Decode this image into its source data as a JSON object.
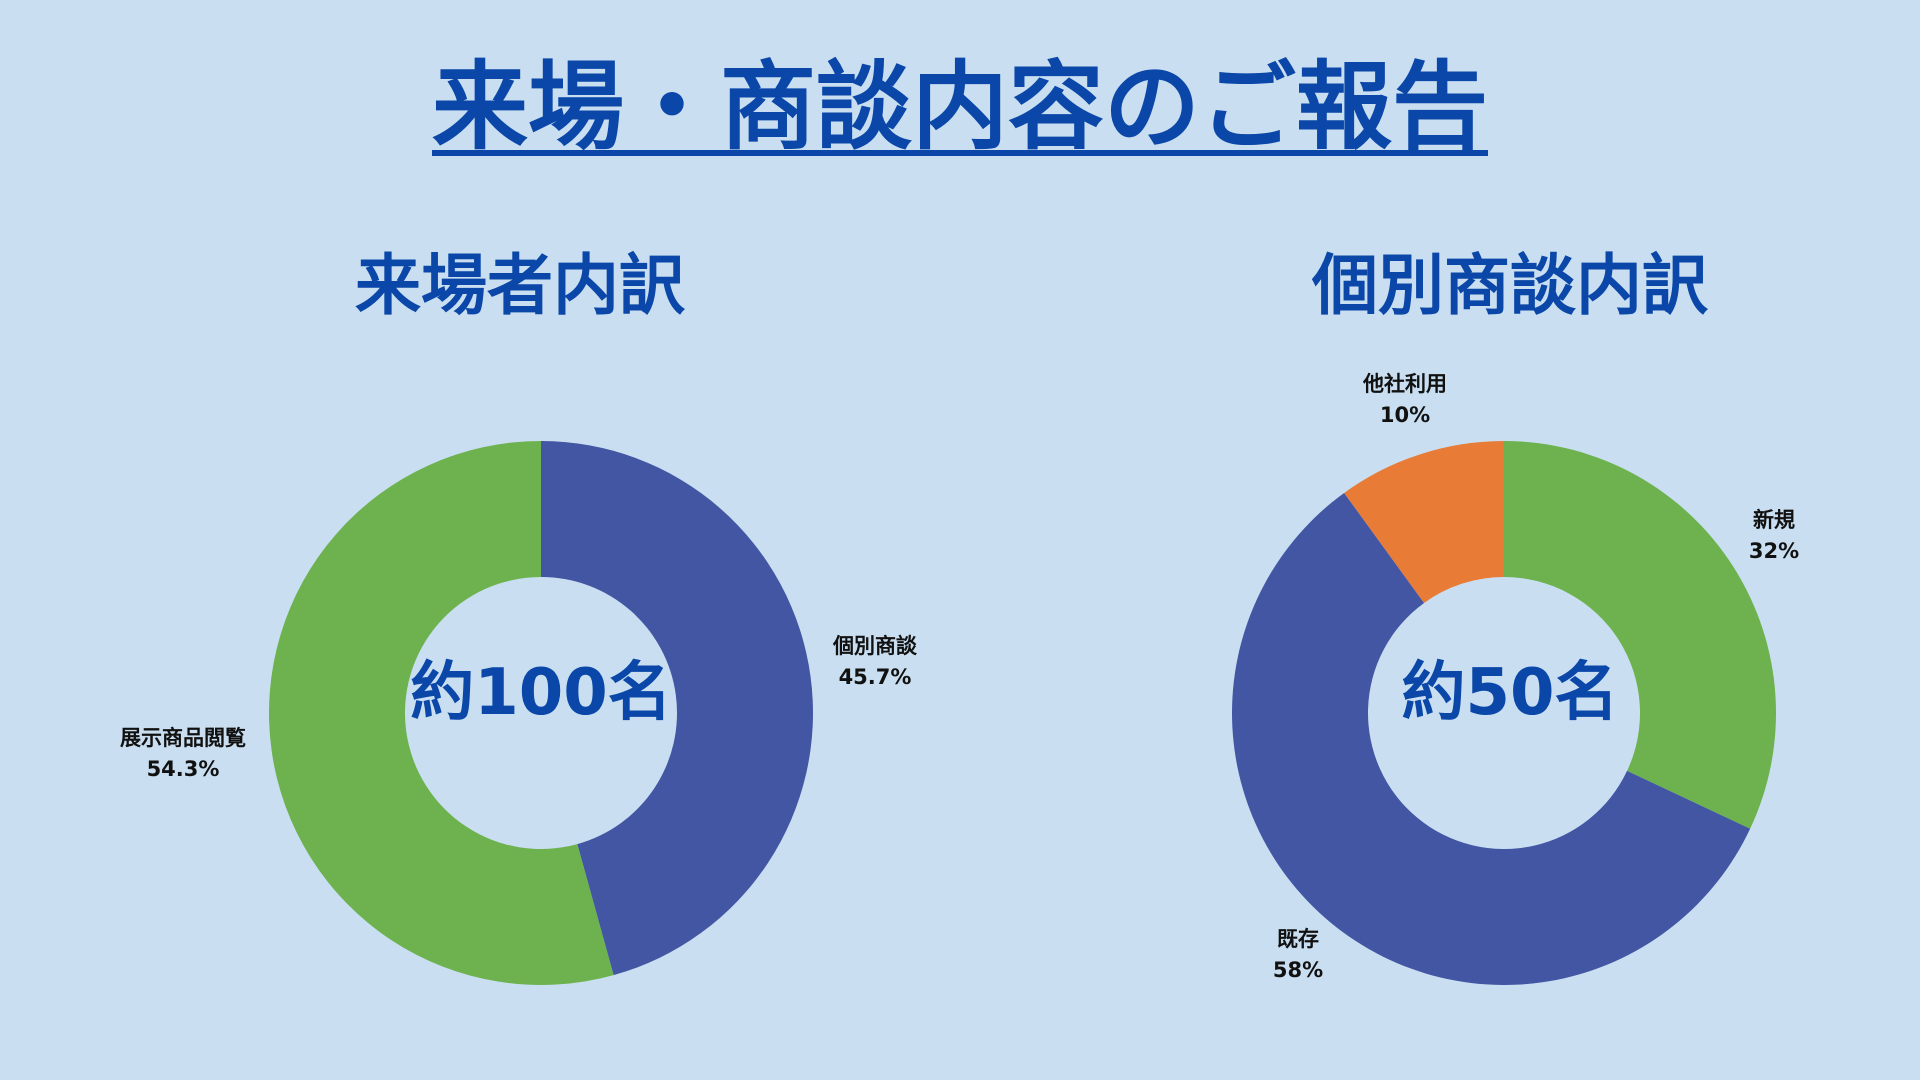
{
  "header": {
    "title": "来場・商談内容のご報告"
  },
  "chart_data": [
    {
      "type": "pie",
      "title": "来場者内訳",
      "center_text": "約100名",
      "slices": [
        {
          "label": "個別商談",
          "value": 45.7,
          "value_label": "45.7%",
          "color": "#4356a3"
        },
        {
          "label": "展示商品閲覧",
          "value": 54.3,
          "value_label": "54.3%",
          "color": "#6db24f"
        }
      ]
    },
    {
      "type": "pie",
      "title": "個別商談内訳",
      "center_text": "約50名",
      "slices": [
        {
          "label": "新規",
          "value": 32,
          "value_label": "32%",
          "color": "#6db24f"
        },
        {
          "label": "既存",
          "value": 58,
          "value_label": "58%",
          "color": "#4356a3"
        },
        {
          "label": "他社利用",
          "value": 10,
          "value_label": "10%",
          "color": "#e87b36"
        }
      ]
    }
  ]
}
